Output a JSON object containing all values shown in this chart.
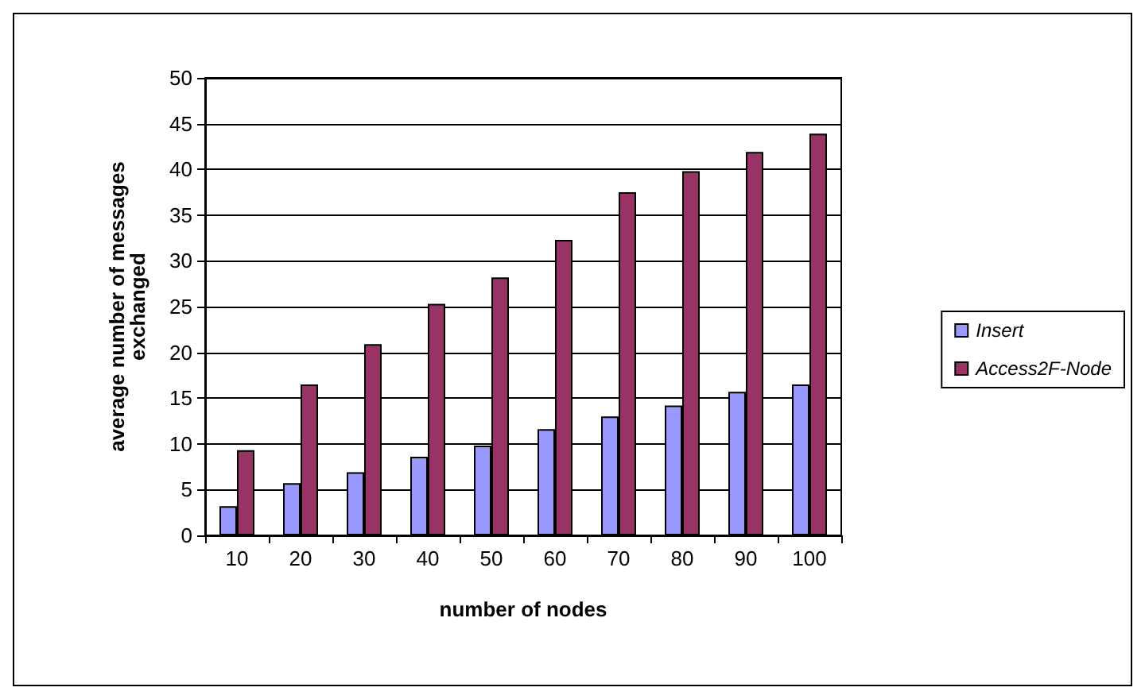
{
  "chart_data": {
    "type": "bar",
    "xlabel": "number of nodes",
    "ylabel": "average number of messages exchanged",
    "categories": [
      "10",
      "20",
      "30",
      "40",
      "50",
      "60",
      "70",
      "80",
      "90",
      "100"
    ],
    "series": [
      {
        "name": "Insert",
        "color": "#9999ff",
        "values": [
          3.2,
          5.7,
          6.9,
          8.6,
          9.8,
          11.6,
          13.0,
          14.2,
          15.7,
          16.5
        ]
      },
      {
        "name": "Access2F-Node",
        "color": "#993366",
        "values": [
          9.3,
          16.5,
          20.9,
          25.3,
          28.2,
          32.3,
          37.5,
          39.8,
          41.9,
          43.9
        ]
      }
    ],
    "ylim": [
      0,
      50
    ],
    "yticks": [
      0,
      5,
      10,
      15,
      20,
      25,
      30,
      35,
      40,
      45,
      50
    ],
    "grid": "y",
    "legend": "right"
  }
}
